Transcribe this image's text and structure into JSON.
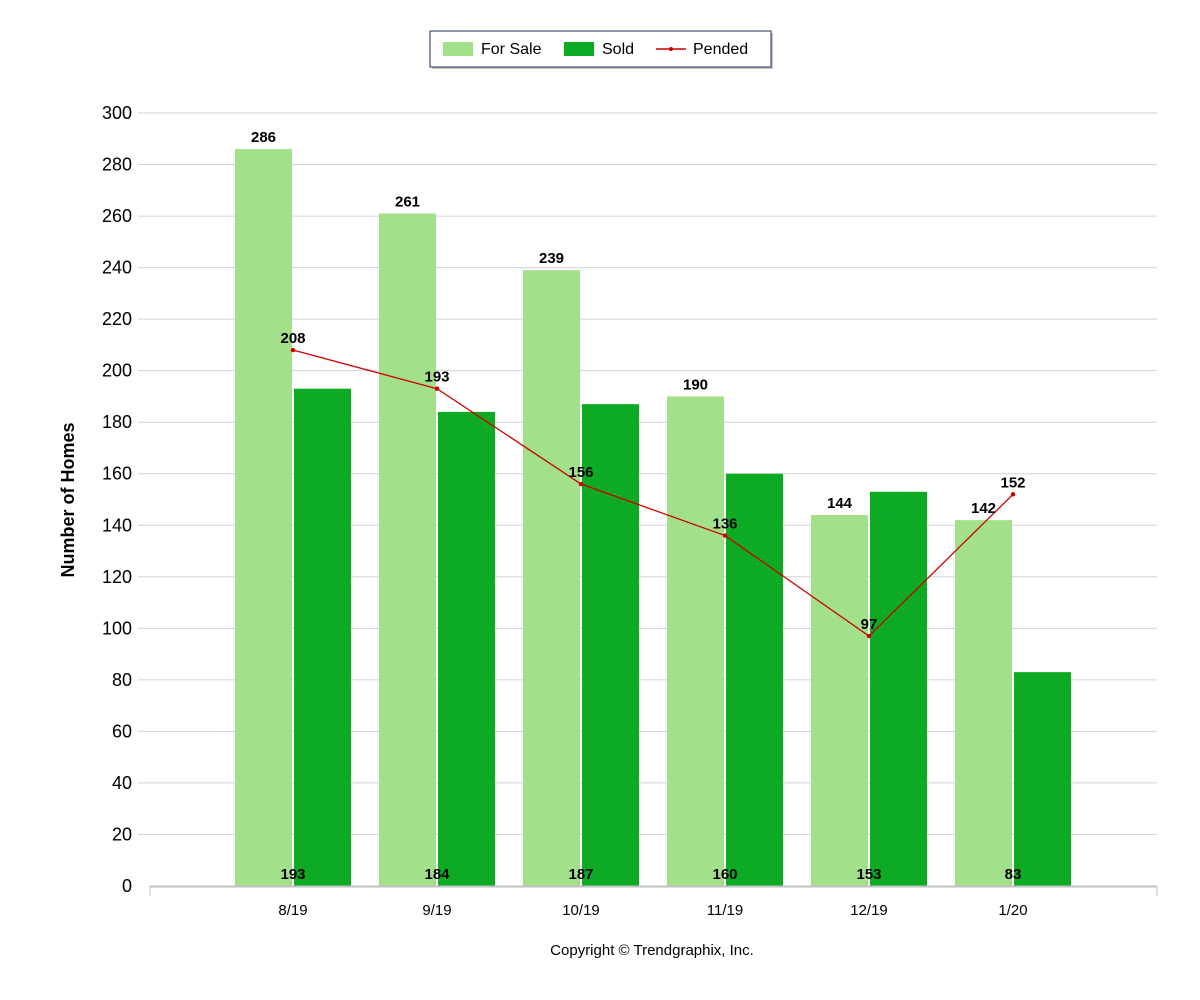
{
  "chart_data": {
    "type": "bar",
    "categories": [
      "8/19",
      "9/19",
      "10/19",
      "11/19",
      "12/19",
      "1/20"
    ],
    "series": [
      {
        "name": "For Sale",
        "type": "bar",
        "color": "#a3e08a",
        "values": [
          286,
          261,
          239,
          190,
          144,
          142
        ]
      },
      {
        "name": "Sold",
        "type": "bar",
        "color": "#0daa24",
        "values": [
          193,
          184,
          187,
          160,
          153,
          83
        ]
      },
      {
        "name": "Pended",
        "type": "line",
        "color": "#cc0000",
        "values": [
          208,
          193,
          156,
          136,
          97,
          152
        ]
      }
    ],
    "ylabel": "Number of Homes",
    "xlabel": "",
    "ylim": [
      0,
      300
    ],
    "yticks": [
      0,
      20,
      40,
      60,
      80,
      100,
      120,
      140,
      160,
      180,
      200,
      220,
      240,
      260,
      280,
      300
    ],
    "grid": true,
    "legend_position": "top-center"
  },
  "footer": {
    "copyright": "Copyright © Trendgraphix, Inc."
  }
}
